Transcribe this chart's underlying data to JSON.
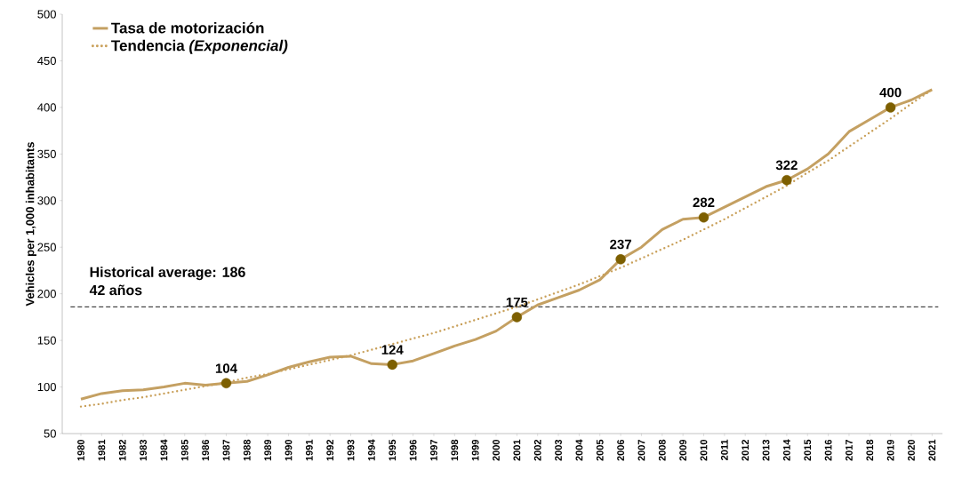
{
  "chart_data": {
    "type": "line",
    "ylabel": "Vehicles per 1,000 inhabitants",
    "categories": [
      "1980",
      "1981",
      "1982",
      "1983",
      "1984",
      "1985",
      "1986",
      "1987",
      "1988",
      "1989",
      "1990",
      "1991",
      "1992",
      "1993",
      "1994",
      "1995",
      "1996",
      "1997",
      "1998",
      "1999",
      "2000",
      "2001",
      "2002",
      "2003",
      "2004",
      "2005",
      "2006",
      "2007",
      "2008",
      "2009",
      "2010",
      "2011",
      "2012",
      "2013",
      "2014",
      "2015",
      "2016",
      "2017",
      "2018",
      "2019",
      "2020",
      "2021"
    ],
    "series": [
      {
        "name": "Tasa de motorización",
        "color": "#c4a062",
        "line_style": "solid",
        "values": [
          87,
          93,
          96,
          97,
          100,
          104,
          102,
          104,
          106,
          113,
          121,
          127,
          132,
          133,
          125,
          124,
          128,
          136,
          144,
          151,
          160,
          175,
          188,
          196,
          204,
          215,
          237,
          250,
          269,
          280,
          282,
          293,
          304,
          315,
          322,
          334,
          350,
          374,
          387,
          400,
          408,
          419
        ]
      },
      {
        "name": "Tendencia *(Exponencial)*",
        "color": "#c9a05a",
        "line_style": "dotted",
        "values": [
          79,
          82,
          86,
          89,
          93,
          97,
          101,
          105,
          110,
          114,
          119,
          124,
          129,
          134,
          140,
          146,
          152,
          158,
          165,
          172,
          179,
          186,
          194,
          202,
          210,
          219,
          228,
          238,
          248,
          258,
          269,
          280,
          292,
          304,
          316,
          330,
          343,
          358,
          373,
          388,
          404,
          419
        ]
      },
      {
        "type": "scatter",
        "color": "#7d5f00",
        "marker": "circle",
        "values": [
          null,
          null,
          null,
          null,
          null,
          null,
          null,
          104,
          null,
          null,
          null,
          null,
          null,
          null,
          null,
          124,
          null,
          null,
          null,
          null,
          null,
          175,
          null,
          null,
          null,
          null,
          237,
          null,
          null,
          null,
          282,
          null,
          null,
          null,
          322,
          null,
          null,
          null,
          null,
          400,
          null,
          null
        ],
        "value_labels": [
          null,
          null,
          null,
          null,
          null,
          null,
          null,
          "104",
          null,
          null,
          null,
          null,
          null,
          null,
          null,
          "124",
          null,
          null,
          null,
          null,
          null,
          "175",
          null,
          null,
          null,
          null,
          "237",
          null,
          null,
          null,
          "282",
          null,
          null,
          null,
          "322",
          null,
          null,
          null,
          null,
          "400",
          null,
          null
        ]
      }
    ],
    "ylim": [
      50,
      500
    ],
    "yticks": [
      50,
      100,
      150,
      200,
      250,
      300,
      350,
      400,
      450,
      500
    ],
    "ref_lines": [
      {
        "axis": "y",
        "value": 186,
        "label": "Historical average: 186",
        "color": "#000000",
        "line_style": "dashed"
      }
    ],
    "annotations": [
      "42 años"
    ],
    "legend": "top left",
    "grid": false
  }
}
